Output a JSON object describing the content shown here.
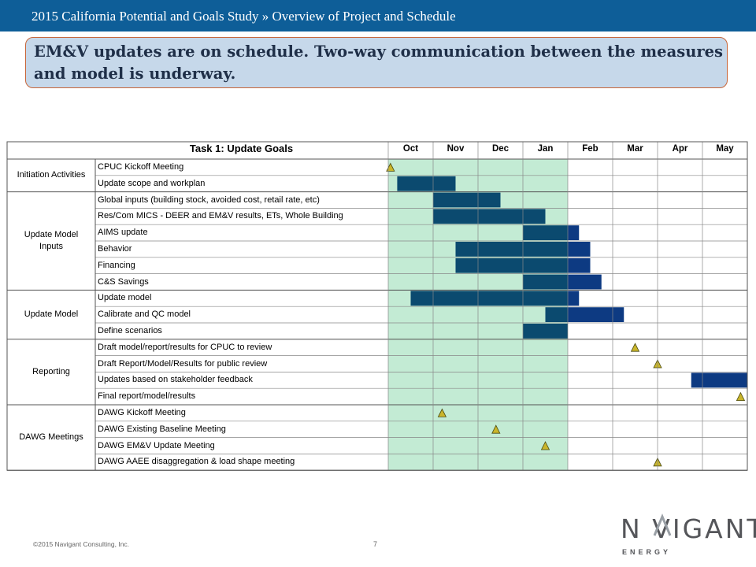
{
  "header": {
    "title": "2015 California Potential and Goals Study » Overview of Project and Schedule"
  },
  "callout": {
    "text": "EM&V updates are on schedule. Two-way communication between the measures and model is underway."
  },
  "colors": {
    "header_bg": "#0e5e98",
    "highlight": "#c3ebd4",
    "bar": "#0b4a6f",
    "bar_future": "#0d3a82",
    "milestone": "#c9b52b",
    "callout_bg": "#c6d8ea",
    "callout_border": "#c8663a"
  },
  "gantt": {
    "title": "Task 1: Update Goals",
    "months": [
      "Oct",
      "Nov",
      "Dec",
      "Jan",
      "Feb",
      "Mar",
      "Apr",
      "May"
    ],
    "highlight_months": [
      "Oct",
      "Nov",
      "Dec",
      "Jan"
    ],
    "groups": [
      {
        "label": "Initiation Activities",
        "rows": 2
      },
      {
        "label": "Update Model Inputs",
        "rows": 6
      },
      {
        "label": "Update Model",
        "rows": 3
      },
      {
        "label": "Reporting",
        "rows": 4
      },
      {
        "label": "DAWG Meetings",
        "rows": 4
      }
    ],
    "tasks": [
      {
        "label": "CPUC Kickoff Meeting",
        "milestone": 0.05
      },
      {
        "label": "Update scope and workplan",
        "bar": [
          0.2,
          1.5
        ]
      },
      {
        "label": "Global inputs (building stock, avoided cost, retail rate, etc)",
        "bar": [
          1.0,
          2.5
        ]
      },
      {
        "label": "Res/Com MICS - DEER and EM&V results, ETs, Whole Building",
        "bar": [
          1.0,
          3.5
        ]
      },
      {
        "label": "AIMS update",
        "bar": [
          3.0,
          4.0
        ],
        "bar_future": [
          4.0,
          4.25
        ]
      },
      {
        "label": "Behavior",
        "bar": [
          1.5,
          4.0
        ],
        "bar_future": [
          4.0,
          4.5
        ]
      },
      {
        "label": "Financing",
        "bar": [
          1.5,
          4.0
        ],
        "bar_future": [
          4.0,
          4.5
        ]
      },
      {
        "label": "C&S Savings",
        "bar": [
          3.0,
          4.0
        ],
        "bar_future": [
          4.0,
          4.75
        ]
      },
      {
        "label": "Update model",
        "bar": [
          0.5,
          4.0
        ],
        "bar_future": [
          4.0,
          4.25
        ]
      },
      {
        "label": "Calibrate and QC model",
        "bar": [
          3.5,
          4.0
        ],
        "bar_future": [
          4.0,
          5.25
        ]
      },
      {
        "label": "Define scenarios",
        "bar": [
          3.0,
          4.0
        ]
      },
      {
        "label": "Draft model/report/results for CPUC to review",
        "milestone": 5.5
      },
      {
        "label": "Draft Report/Model/Results for public review",
        "milestone": 6.0
      },
      {
        "label": "Updates based on stakeholder feedback",
        "bar_future": [
          6.75,
          8.0
        ]
      },
      {
        "label": "Final report/model/results",
        "milestone": 7.85
      },
      {
        "label": "DAWG Kickoff Meeting",
        "milestone": 1.2
      },
      {
        "label": "DAWG Existing Baseline Meeting",
        "milestone": 2.4
      },
      {
        "label": "DAWG EM&V Update Meeting",
        "milestone": 3.5
      },
      {
        "label": "DAWG AAEE disaggregation & load shape meeting",
        "milestone": 6.0
      }
    ]
  },
  "footer": {
    "copyright": "©2015 Navigant Consulting, Inc.",
    "page_number": "7"
  },
  "logo": {
    "name": "NAVIGANT",
    "sub": "ENERGY"
  }
}
